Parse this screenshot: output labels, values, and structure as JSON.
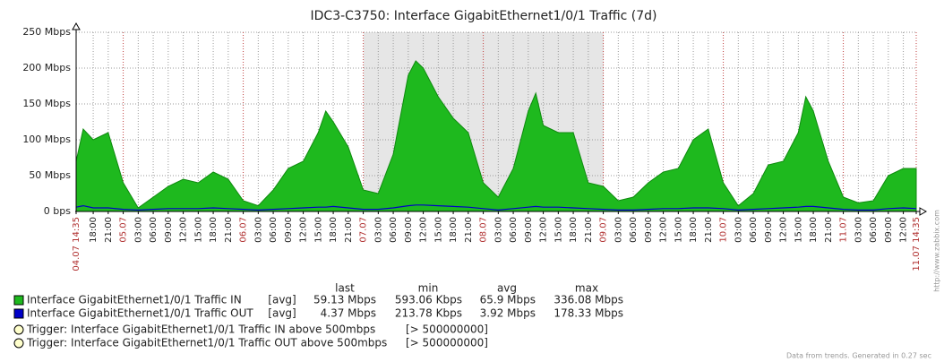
{
  "chart_data": {
    "type": "area",
    "title": "IDC3-C3750: Interface GigabitEthernet1/0/1 Traffic  (7d)",
    "xlim": [
      "04.07 14:35",
      "11.07 14:35"
    ],
    "ylim": [
      0,
      250
    ],
    "yticks": [
      {
        "value": 0,
        "label": "0 bps"
      },
      {
        "value": 50,
        "label": "50 Mbps"
      },
      {
        "value": 100,
        "label": "100 Mbps"
      },
      {
        "value": 150,
        "label": "150 Mbps"
      },
      {
        "value": 200,
        "label": "200 Mbps"
      },
      {
        "value": 250,
        "label": "250 Mbps"
      }
    ],
    "xticks": [
      {
        "value": "04.07 14:35",
        "label": "04.07 14:35"
      },
      {
        "value": "04.07 18:00",
        "label": "18:00"
      },
      {
        "value": "04.07 21:00",
        "label": "21:00"
      },
      {
        "value": "05.07 00:00",
        "label": "05.07"
      },
      {
        "value": "05.07 03:00",
        "label": "03:00"
      },
      {
        "value": "05.07 06:00",
        "label": "06:00"
      },
      {
        "value": "05.07 09:00",
        "label": "09:00"
      },
      {
        "value": "05.07 12:00",
        "label": "12:00"
      },
      {
        "value": "05.07 15:00",
        "label": "15:00"
      },
      {
        "value": "05.07 18:00",
        "label": "18:00"
      },
      {
        "value": "05.07 21:00",
        "label": "21:00"
      },
      {
        "value": "06.07 00:00",
        "label": "06.07"
      },
      {
        "value": "06.07 03:00",
        "label": "03:00"
      },
      {
        "value": "06.07 06:00",
        "label": "06:00"
      },
      {
        "value": "06.07 09:00",
        "label": "09:00"
      },
      {
        "value": "06.07 12:00",
        "label": "12:00"
      },
      {
        "value": "06.07 15:00",
        "label": "15:00"
      },
      {
        "value": "06.07 18:00",
        "label": "18:00"
      },
      {
        "value": "06.07 21:00",
        "label": "21:00"
      },
      {
        "value": "07.07 00:00",
        "label": "07.07"
      },
      {
        "value": "07.07 03:00",
        "label": "03:00"
      },
      {
        "value": "07.07 06:00",
        "label": "06:00"
      },
      {
        "value": "07.07 09:00",
        "label": "09:00"
      },
      {
        "value": "07.07 12:00",
        "label": "12:00"
      },
      {
        "value": "07.07 15:00",
        "label": "15:00"
      },
      {
        "value": "07.07 18:00",
        "label": "18:00"
      },
      {
        "value": "07.07 21:00",
        "label": "21:00"
      },
      {
        "value": "08.07 00:00",
        "label": "08.07"
      },
      {
        "value": "08.07 03:00",
        "label": "03:00"
      },
      {
        "value": "08.07 06:00",
        "label": "06:00"
      },
      {
        "value": "08.07 09:00",
        "label": "09:00"
      },
      {
        "value": "08.07 12:00",
        "label": "12:00"
      },
      {
        "value": "08.07 15:00",
        "label": "15:00"
      },
      {
        "value": "08.07 18:00",
        "label": "18:00"
      },
      {
        "value": "08.07 21:00",
        "label": "21:00"
      },
      {
        "value": "09.07 00:00",
        "label": "09.07"
      },
      {
        "value": "09.07 03:00",
        "label": "03:00"
      },
      {
        "value": "09.07 06:00",
        "label": "06:00"
      },
      {
        "value": "09.07 09:00",
        "label": "09:00"
      },
      {
        "value": "09.07 12:00",
        "label": "12:00"
      },
      {
        "value": "09.07 15:00",
        "label": "15:00"
      },
      {
        "value": "09.07 18:00",
        "label": "18:00"
      },
      {
        "value": "09.07 21:00",
        "label": "21:00"
      },
      {
        "value": "10.07 00:00",
        "label": "10.07"
      },
      {
        "value": "10.07 03:00",
        "label": "03:00"
      },
      {
        "value": "10.07 06:00",
        "label": "06:00"
      },
      {
        "value": "10.07 09:00",
        "label": "09:00"
      },
      {
        "value": "10.07 12:00",
        "label": "12:00"
      },
      {
        "value": "10.07 15:00",
        "label": "15:00"
      },
      {
        "value": "10.07 18:00",
        "label": "18:00"
      },
      {
        "value": "10.07 21:00",
        "label": "21:00"
      },
      {
        "value": "11.07 00:00",
        "label": "11.07"
      },
      {
        "value": "11.07 03:00",
        "label": "03:00"
      },
      {
        "value": "11.07 06:00",
        "label": "06:00"
      },
      {
        "value": "11.07 09:00",
        "label": "09:00"
      },
      {
        "value": "11.07 12:00",
        "label": "12:00"
      },
      {
        "value": "11.07 14:35",
        "label": "11.07 14:35"
      }
    ],
    "x": [
      "04.07 14:35",
      "04.07 16:00",
      "04.07 18:00",
      "04.07 21:00",
      "05.07 00:00",
      "05.07 03:00",
      "05.07 06:00",
      "05.07 09:00",
      "05.07 12:00",
      "05.07 15:00",
      "05.07 18:00",
      "05.07 21:00",
      "06.07 00:00",
      "06.07 03:00",
      "06.07 06:00",
      "06.07 09:00",
      "06.07 12:00",
      "06.07 15:00",
      "06.07 16:30",
      "06.07 18:00",
      "06.07 21:00",
      "07.07 00:00",
      "07.07 03:00",
      "07.07 06:00",
      "07.07 09:00",
      "07.07 10:30",
      "07.07 12:00",
      "07.07 15:00",
      "07.07 18:00",
      "07.07 21:00",
      "08.07 00:00",
      "08.07 03:00",
      "08.07 06:00",
      "08.07 09:00",
      "08.07 10:30",
      "08.07 12:00",
      "08.07 15:00",
      "08.07 18:00",
      "08.07 21:00",
      "09.07 00:00",
      "09.07 03:00",
      "09.07 06:00",
      "09.07 09:00",
      "09.07 12:00",
      "09.07 15:00",
      "09.07 18:00",
      "09.07 21:00",
      "10.07 00:00",
      "10.07 03:00",
      "10.07 06:00",
      "10.07 09:00",
      "10.07 12:00",
      "10.07 15:00",
      "10.07 16:30",
      "10.07 18:00",
      "10.07 21:00",
      "11.07 00:00",
      "11.07 03:00",
      "11.07 06:00",
      "11.07 09:00",
      "11.07 12:00",
      "11.07 14:35"
    ],
    "series": [
      {
        "name": "Interface GigabitEthernet1/0/1 Traffic IN",
        "color": "#1eb91e",
        "values": [
          70,
          115,
          100,
          110,
          40,
          5,
          20,
          35,
          45,
          40,
          55,
          45,
          15,
          8,
          30,
          60,
          70,
          110,
          140,
          125,
          90,
          30,
          25,
          80,
          190,
          210,
          200,
          160,
          130,
          110,
          40,
          20,
          60,
          140,
          165,
          120,
          110,
          110,
          40,
          35,
          15,
          20,
          40,
          55,
          60,
          100,
          115,
          40,
          8,
          25,
          65,
          70,
          110,
          160,
          140,
          70,
          20,
          12,
          15,
          50,
          60,
          60
        ]
      },
      {
        "name": "Interface GigabitEthernet1/0/1 Traffic OUT",
        "color": "#0000c8",
        "values": [
          6,
          8,
          5,
          5,
          3,
          2,
          3,
          4,
          4,
          4,
          5,
          4,
          3,
          2,
          3,
          4,
          5,
          6,
          6,
          7,
          5,
          3,
          3,
          5,
          8,
          9,
          9,
          8,
          7,
          6,
          4,
          2,
          4,
          6,
          7,
          6,
          6,
          5,
          4,
          3,
          2,
          2,
          3,
          4,
          4,
          5,
          5,
          4,
          2,
          3,
          4,
          5,
          6,
          7,
          7,
          5,
          3,
          2,
          2,
          4,
          5,
          4
        ]
      }
    ],
    "grid": true,
    "legend": {
      "headers": [
        "last",
        "min",
        "avg",
        "max"
      ],
      "rows": [
        [
          "[avg]",
          "59.13 Mbps",
          "593.06 Kbps",
          "65.9 Mbps",
          "336.08 Mbps"
        ],
        [
          "[avg]",
          "4.37 Mbps",
          "213.78 Kbps",
          "3.92 Mbps",
          "178.33 Mbps"
        ]
      ]
    },
    "triggers": [
      {
        "label": "Trigger: Interface GigabitEthernet1/0/1 Traffic IN above 500mbps",
        "threshold": "[> 500000000]"
      },
      {
        "label": "Trigger: Interface GigabitEthernet1/0/1 Traffic OUT above 500mbps",
        "threshold": "[> 500000000]"
      }
    ],
    "footer": "Data from trends. Generated in 0.27 sec",
    "watermark": "http://www.zabbix.com"
  }
}
